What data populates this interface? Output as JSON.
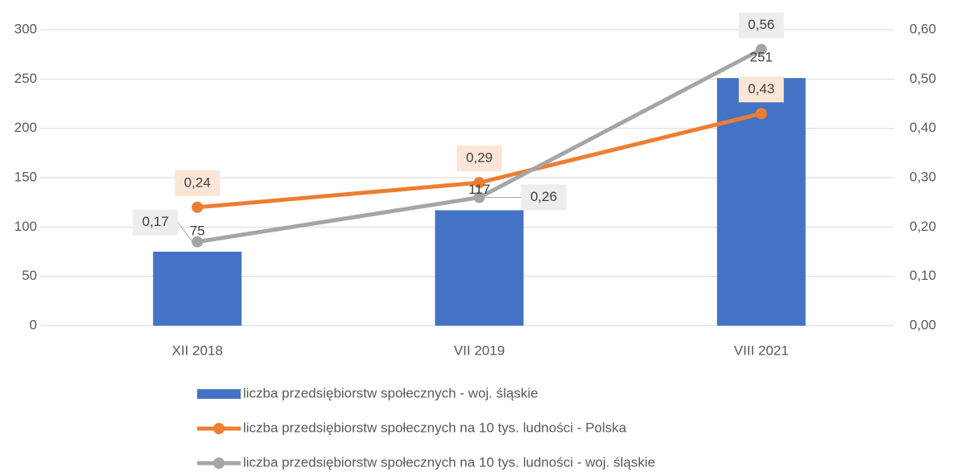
{
  "chart_data": {
    "type": "bar",
    "categories": [
      "XII 2018",
      "VII 2019",
      "VIII 2021"
    ],
    "series": [
      {
        "name": "liczba przedsiębiorstw społecznych - woj. śląskie",
        "type": "bar",
        "color": "#4472c4",
        "values": [
          75,
          117,
          251
        ]
      },
      {
        "name": "liczba przedsiębiorstw społecznych na 10 tys. ludności - Polska",
        "type": "line",
        "axis": "y2",
        "color": "#ed7d31",
        "values": [
          0.24,
          0.29,
          0.43
        ],
        "value_labels": [
          "0,24",
          "0,29",
          "0,43"
        ]
      },
      {
        "name": "liczba przedsiębiorstw społecznych na 10 tys. ludności - woj. śląskie",
        "type": "line",
        "axis": "y2",
        "color": "#a5a5a5",
        "values": [
          0.17,
          0.26,
          0.56
        ],
        "value_labels": [
          "0,17",
          "0,26",
          "0,56"
        ]
      }
    ],
    "ylim": [
      0,
      300
    ],
    "yticks": [
      0,
      50,
      100,
      150,
      200,
      250,
      300
    ],
    "y2lim": [
      0,
      0.6
    ],
    "y2ticks": [
      {
        "value": 0,
        "label": "0,00"
      },
      {
        "value": 0.1,
        "label": "0,10"
      },
      {
        "value": 0.2,
        "label": "0,20"
      },
      {
        "value": 0.3,
        "label": "0,30"
      },
      {
        "value": 0.4,
        "label": "0,40"
      },
      {
        "value": 0.5,
        "label": "0,50"
      },
      {
        "value": 0.6,
        "label": "0,60"
      }
    ],
    "grid": true,
    "legend": "bottom"
  }
}
